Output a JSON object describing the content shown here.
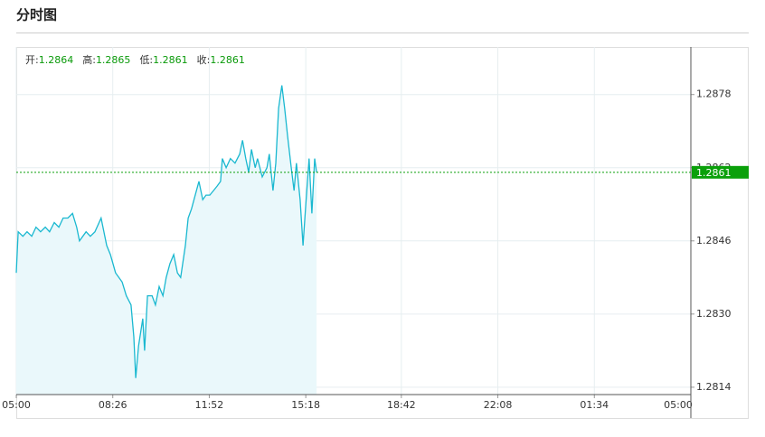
{
  "chart_data": {
    "type": "line",
    "title": "分时图",
    "stats": [
      {
        "label": "开:",
        "value": 1.2864
      },
      {
        "label": "高:",
        "value": 1.2865
      },
      {
        "label": "低:",
        "value": 1.2861
      },
      {
        "label": "收:",
        "value": 1.2861
      }
    ],
    "series": [
      {
        "color": "#1ab8d0",
        "x": [
          0,
          4,
          14,
          23,
          33,
          42,
          52,
          62,
          71,
          81,
          91,
          100,
          110,
          120,
          129,
          135,
          149,
          158,
          168,
          181,
          193,
          201,
          212,
          226,
          235,
          245,
          251,
          255,
          261,
          270,
          274,
          280,
          290,
          297,
          305,
          313,
          320,
          328,
          336,
          344,
          351,
          361,
          367,
          374,
          382,
          390,
          398,
          405,
          413,
          421,
          429,
          436,
          440,
          448,
          457,
          467,
          477,
          483,
          490,
          496,
          502,
          510,
          515,
          525,
          535,
          540,
          548,
          554,
          560,
          567,
          573,
          579,
          587,
          593,
          598,
          606,
          612,
          618,
          625,
          631,
          637,
          641
        ],
        "values": [
          1.2839,
          1.2848,
          1.2847,
          1.2848,
          1.2847,
          1.2849,
          1.2848,
          1.2849,
          1.2848,
          1.285,
          1.2849,
          1.2851,
          1.2851,
          1.2852,
          1.2849,
          1.2846,
          1.2848,
          1.2847,
          1.2848,
          1.2851,
          1.2845,
          1.2843,
          1.2839,
          1.2837,
          1.2834,
          1.2832,
          1.2825,
          1.2816,
          1.2823,
          1.2829,
          1.2822,
          1.2834,
          1.2834,
          1.2832,
          1.2836,
          1.2834,
          1.2838,
          1.2841,
          1.2843,
          1.2839,
          1.2838,
          1.2845,
          1.2851,
          1.2853,
          1.2856,
          1.2859,
          1.2855,
          1.2856,
          1.2856,
          1.2857,
          1.2858,
          1.2859,
          1.2864,
          1.2862,
          1.2864,
          1.2863,
          1.2865,
          1.2868,
          1.2864,
          1.2861,
          1.2866,
          1.2862,
          1.2864,
          1.286,
          1.2862,
          1.2865,
          1.2857,
          1.2863,
          1.2875,
          1.288,
          1.2875,
          1.2869,
          1.2862,
          1.2857,
          1.2863,
          1.2855,
          1.2845,
          1.2854,
          1.2864,
          1.2852,
          1.2864,
          1.2861
        ]
      }
    ],
    "current": 1.2861,
    "current_color": "#0aa00a",
    "xlim": [
      0,
      1440
    ],
    "xticks": [
      {
        "value": 0,
        "label": "05:00"
      },
      {
        "value": 206,
        "label": "08:26"
      },
      {
        "value": 412,
        "label": "11:52"
      },
      {
        "value": 618,
        "label": "15:18"
      },
      {
        "value": 822,
        "label": "18:42"
      },
      {
        "value": 1028,
        "label": "22:08"
      },
      {
        "value": 1234,
        "label": "01:34"
      },
      {
        "value": 1440,
        "label": "05:00"
      }
    ],
    "ylim": [
      1.2812,
      1.2889
    ],
    "yticks": [
      1.2814,
      {
        "value": 1.283,
        "label": "1.2830"
      },
      1.2846,
      1.2862,
      1.2878
    ],
    "grid": true
  }
}
